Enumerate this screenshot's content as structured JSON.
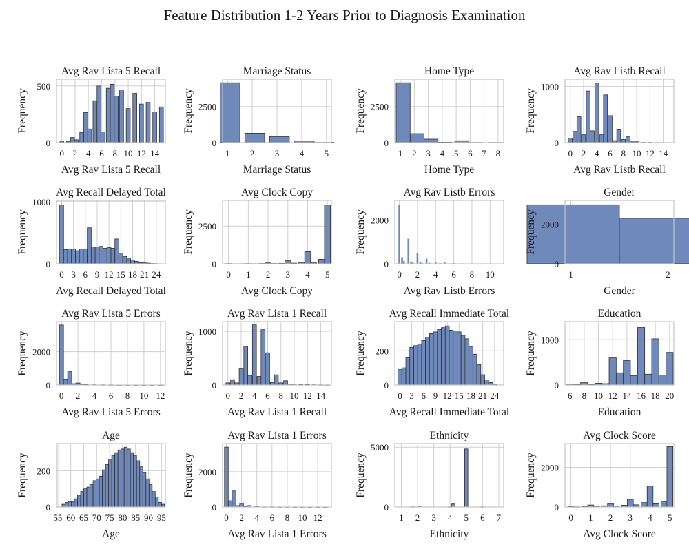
{
  "figure": {
    "suptitle": "Feature Distribution 1-2 Years Prior to Diagnosis Examination"
  },
  "colors": {
    "bar_fill": "#7089bb",
    "bar_edge": "#2f2f2f",
    "grid": "#cfcfcf",
    "spine": "#c4c4c4"
  },
  "chart_data": [
    {
      "type": "bar",
      "title": "Avg Rav Lista 5 Recall",
      "xlabel": "Avg Rav Lista 5 Recall",
      "ylabel": "Frequency",
      "xlim": [
        -0.8,
        15.6
      ],
      "ylim": [
        0,
        560
      ],
      "xticks": [
        0,
        2,
        4,
        6,
        8,
        10,
        12,
        14
      ],
      "yticks": [
        0,
        500
      ],
      "x": [
        0,
        1,
        1.6,
        2.2,
        3,
        3.6,
        4.2,
        5,
        5.6,
        6.2,
        7,
        7.6,
        8.2,
        9,
        10,
        11,
        12,
        13,
        14,
        15
      ],
      "values": [
        8,
        12,
        45,
        25,
        90,
        265,
        120,
        370,
        500,
        95,
        480,
        515,
        410,
        465,
        300,
        435,
        340,
        355,
        270,
        315
      ]
    },
    {
      "type": "bar",
      "title": "Marriage Status",
      "xlabel": "Marriage Status",
      "ylabel": "Frequency",
      "xlim": [
        0.8,
        5.2
      ],
      "ylim": [
        0,
        4400
      ],
      "xticks": [
        1,
        2,
        3,
        4,
        5
      ],
      "yticks": [
        0,
        2500
      ],
      "x": [
        1.1,
        2.1,
        3.1,
        4.1,
        4.9
      ],
      "values": [
        4150,
        650,
        420,
        120,
        15
      ]
    },
    {
      "type": "bar",
      "title": "Home Type",
      "xlabel": "Home Type",
      "ylabel": "Frequency",
      "xlim": [
        0.6,
        8.4
      ],
      "ylim": [
        0,
        4400
      ],
      "xticks": [
        1,
        2,
        3,
        4,
        5,
        6,
        7,
        8
      ],
      "yticks": [
        0,
        2500
      ],
      "x": [
        1.2,
        2.2,
        3.2,
        4.2,
        5.4,
        6.4,
        7.8
      ],
      "values": [
        4150,
        620,
        240,
        30,
        130,
        15,
        15
      ]
    },
    {
      "type": "bar",
      "title": "Avg Rav Listb Recall",
      "xlabel": "Avg Rav Listb Recall",
      "ylabel": "Frequency",
      "xlim": [
        -0.8,
        15.6
      ],
      "ylim": [
        0,
        1130
      ],
      "xticks": [
        0,
        2,
        4,
        6,
        8,
        10,
        12,
        14
      ],
      "yticks": [
        0,
        1000
      ],
      "x": [
        0,
        0.7,
        1.3,
        2,
        2.7,
        3.3,
        4,
        4.7,
        5.3,
        6,
        6.7,
        7.3,
        8,
        8.7,
        9.3,
        10,
        11,
        12,
        13,
        14
      ],
      "values": [
        80,
        200,
        460,
        140,
        920,
        210,
        1060,
        140,
        850,
        480,
        35,
        230,
        55,
        110,
        15,
        15,
        5,
        5,
        3,
        2
      ]
    },
    {
      "type": "bar",
      "title": "Avg Recall Delayed Total",
      "xlabel": "Avg Recall Delayed Total",
      "ylabel": "Frequency",
      "xlim": [
        -1.3,
        26.3
      ],
      "ylim": [
        0,
        1020
      ],
      "xticks": [
        0,
        3,
        6,
        9,
        12,
        15,
        18,
        21,
        24
      ],
      "yticks": [
        0,
        1000
      ],
      "x": [
        0,
        1,
        2,
        3,
        4,
        5,
        6,
        7,
        8,
        9,
        10,
        11,
        12,
        13,
        14,
        15,
        16,
        17,
        18,
        19,
        20,
        21,
        22,
        23,
        24
      ],
      "values": [
        950,
        230,
        240,
        240,
        210,
        240,
        240,
        580,
        270,
        270,
        280,
        250,
        260,
        250,
        400,
        170,
        120,
        80,
        60,
        40,
        20,
        15,
        10,
        5,
        3
      ]
    },
    {
      "type": "bar",
      "title": "Avg Clock Copy",
      "xlabel": "Avg Clock Copy",
      "ylabel": "Frequency",
      "xlim": [
        -0.3,
        5.2
      ],
      "ylim": [
        0,
        4200
      ],
      "xticks": [
        0,
        1,
        2,
        3,
        4,
        5
      ],
      "yticks": [
        0,
        2500
      ],
      "x": [
        0,
        0.3,
        0.7,
        1,
        1.3,
        1.7,
        2,
        2.3,
        2.7,
        3,
        3.3,
        3.7,
        4,
        4.3,
        4.7,
        5
      ],
      "values": [
        15,
        5,
        10,
        15,
        10,
        20,
        60,
        20,
        30,
        200,
        40,
        90,
        800,
        60,
        300,
        3900
      ]
    },
    {
      "type": "bar",
      "title": "Avg Rav Listb Errors",
      "xlabel": "Avg Rav Listb Errors",
      "ylabel": "Frequency",
      "xlim": [
        -0.5,
        11.5
      ],
      "ylim": [
        0,
        2900
      ],
      "xticks": [
        0,
        2,
        4,
        6,
        8,
        10
      ],
      "yticks": [
        0,
        2000
      ],
      "x": [
        0,
        0.3,
        0.5,
        1,
        1.3,
        1.5,
        2,
        2.3,
        2.5,
        3,
        3.3,
        3.5,
        4,
        4.5,
        5,
        5.5,
        6,
        6.5,
        7,
        7.5,
        8,
        8.5,
        9,
        9.5,
        10
      ],
      "values": [
        2700,
        300,
        120,
        1150,
        100,
        50,
        500,
        90,
        40,
        230,
        40,
        20,
        90,
        30,
        70,
        15,
        30,
        10,
        20,
        10,
        15,
        5,
        10,
        5,
        3
      ]
    },
    {
      "type": "bar",
      "title": "Gender",
      "xlabel": "Gender",
      "ylabel": "Frequency",
      "xlim": [
        0.94,
        2.06
      ],
      "ylim": [
        0,
        3200
      ],
      "xticks": [
        1,
        2
      ],
      "yticks": [
        0,
        2000
      ],
      "x": [
        1.025,
        1.975
      ],
      "values": [
        2980,
        2300
      ]
    },
    {
      "type": "bar",
      "title": "Avg Rav Lista 5 Errors",
      "xlabel": "Avg Rav Lista 5 Errors",
      "ylabel": "Frequency",
      "xlim": [
        -0.6,
        12.6
      ],
      "ylim": [
        0,
        3800
      ],
      "xticks": [
        0,
        2,
        4,
        6,
        8,
        10,
        12
      ],
      "yticks": [
        0,
        2000
      ],
      "x": [
        0,
        0.5,
        1,
        1.5,
        2,
        2.5,
        3,
        4,
        5,
        6,
        7,
        8,
        9,
        10,
        11,
        12
      ],
      "values": [
        3600,
        350,
        800,
        80,
        120,
        20,
        30,
        15,
        10,
        8,
        5,
        5,
        3,
        3,
        2,
        2
      ]
    },
    {
      "type": "bar",
      "title": "Avg Rav Lista 1 Recall",
      "xlabel": "Avg Rav Lista 1 Recall",
      "ylabel": "Frequency",
      "xlim": [
        -0.8,
        15.6
      ],
      "ylim": [
        0,
        1180
      ],
      "xticks": [
        0,
        2,
        4,
        6,
        8,
        10,
        12,
        14
      ],
      "yticks": [
        0,
        1000
      ],
      "x": [
        0,
        0.7,
        1.3,
        2,
        2.7,
        3.3,
        4,
        4.7,
        5.3,
        6,
        6.7,
        7.3,
        8,
        8.7,
        9.3,
        10,
        11,
        12,
        13,
        14,
        15
      ],
      "values": [
        40,
        100,
        40,
        300,
        720,
        180,
        1120,
        160,
        1030,
        600,
        50,
        190,
        40,
        80,
        20,
        20,
        10,
        10,
        5,
        3,
        2
      ]
    },
    {
      "type": "bar",
      "title": "Avg Recall Immediate Total",
      "xlabel": "Avg Recall Immediate Total",
      "ylabel": "Frequency",
      "xlim": [
        -1.3,
        26.3
      ],
      "ylim": [
        0,
        370
      ],
      "xticks": [
        0,
        3,
        6,
        9,
        12,
        15,
        18,
        21,
        24
      ],
      "yticks": [
        0,
        200
      ],
      "x": [
        0,
        1,
        2,
        3,
        4,
        5,
        6,
        7,
        8,
        9,
        10,
        11,
        12,
        13,
        14,
        15,
        16,
        17,
        18,
        19,
        20,
        21,
        22,
        23,
        24
      ],
      "values": [
        90,
        100,
        160,
        220,
        230,
        240,
        260,
        280,
        300,
        310,
        325,
        335,
        345,
        320,
        315,
        310,
        290,
        270,
        225,
        180,
        120,
        60,
        30,
        15,
        5
      ]
    },
    {
      "type": "bar",
      "title": "Education",
      "xlabel": "Education",
      "ylabel": "Frequency",
      "xlim": [
        5.3,
        20.6
      ],
      "ylim": [
        0,
        1400
      ],
      "xticks": [
        6,
        8,
        10,
        12,
        14,
        16,
        18,
        20
      ],
      "yticks": [
        0,
        1000
      ],
      "x": [
        6,
        7,
        8,
        9,
        10,
        11,
        12,
        13,
        14,
        15,
        16,
        17,
        18,
        19,
        20
      ],
      "values": [
        20,
        15,
        60,
        15,
        40,
        30,
        600,
        270,
        540,
        210,
        1270,
        240,
        1020,
        220,
        720
      ]
    },
    {
      "type": "bar",
      "title": "Age",
      "xlabel": "Age",
      "ylabel": "Frequency",
      "xlim": [
        54.5,
        96.5
      ],
      "ylim": [
        0,
        350
      ],
      "xticks": [
        55,
        60,
        65,
        70,
        75,
        80,
        85,
        90,
        95
      ],
      "yticks": [
        0,
        200
      ],
      "x": [
        57.2,
        58.4,
        59.6,
        60.8,
        62,
        63.2,
        64.4,
        65.6,
        66.8,
        68,
        69.2,
        70.4,
        71.6,
        72.8,
        74,
        75.2,
        76.4,
        77.6,
        78.8,
        80,
        81.2,
        82.4,
        83.6,
        84.8,
        86,
        87.2,
        88.4,
        89.6,
        90.8,
        92,
        93.2,
        94.4,
        95.6
      ],
      "values": [
        15,
        25,
        30,
        30,
        45,
        65,
        85,
        100,
        110,
        125,
        145,
        155,
        170,
        205,
        235,
        265,
        285,
        300,
        315,
        320,
        330,
        320,
        300,
        285,
        255,
        225,
        190,
        155,
        125,
        85,
        55,
        25,
        15
      ]
    },
    {
      "type": "bar",
      "title": "Avg Rav Lista 1 Errors",
      "xlabel": "Avg Rav Lista 1 Errors",
      "ylabel": "Frequency",
      "xlim": [
        -0.5,
        13.8
      ],
      "ylim": [
        0,
        3600
      ],
      "xticks": [
        0,
        2,
        4,
        6,
        8,
        10,
        12
      ],
      "yticks": [
        0,
        2000
      ],
      "x": [
        0,
        0.5,
        1,
        1.5,
        2,
        2.5,
        3,
        4,
        5,
        6,
        7,
        8,
        9,
        10,
        11,
        12,
        13
      ],
      "values": [
        3400,
        350,
        950,
        80,
        200,
        30,
        80,
        20,
        10,
        8,
        5,
        5,
        3,
        3,
        2,
        2,
        2
      ]
    },
    {
      "type": "bar",
      "title": "Ethnicity",
      "xlabel": "Ethnicity",
      "ylabel": "Frequency",
      "xlim": [
        0.6,
        7.3
      ],
      "ylim": [
        0,
        5300
      ],
      "xticks": [
        1,
        2,
        3,
        4,
        5,
        6,
        7
      ],
      "yticks": [
        0,
        5000
      ],
      "x": [
        1.7,
        2.1,
        4,
        4.2,
        5,
        6
      ],
      "values": [
        20,
        90,
        15,
        250,
        4850,
        15
      ]
    },
    {
      "type": "bar",
      "title": "Avg Clock Score",
      "xlabel": "Avg Clock Score",
      "ylabel": "Frequency",
      "xlim": [
        -0.3,
        5.2
      ],
      "ylim": [
        0,
        3200
      ],
      "xticks": [
        0,
        1,
        2,
        3,
        4,
        5
      ],
      "yticks": [
        0,
        2000
      ],
      "x": [
        0,
        0.3,
        0.7,
        1,
        1.3,
        1.7,
        2,
        2.3,
        2.7,
        3,
        3.3,
        3.7,
        4,
        4.3,
        4.7,
        5
      ],
      "values": [
        20,
        10,
        30,
        100,
        40,
        60,
        170,
        50,
        90,
        380,
        110,
        220,
        1050,
        160,
        280,
        3050
      ]
    }
  ]
}
